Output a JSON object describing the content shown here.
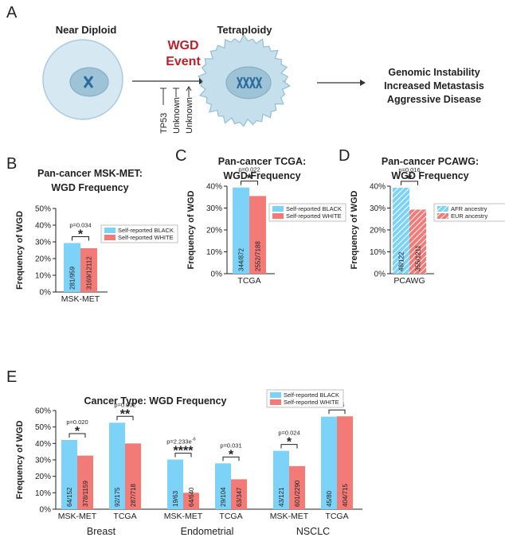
{
  "diagram": {
    "label": "A",
    "left_cell": "Near Diploid",
    "event": [
      "WGD",
      "Event"
    ],
    "regulators": [
      "TP53",
      "Unknown",
      "Unknown"
    ],
    "right_cell": "Tetraploidy",
    "outcomes": [
      "Genomic Instability",
      "Increased Metastasis",
      "Aggressive Disease"
    ]
  },
  "chart_data": [
    {
      "type": "bar",
      "label": "B",
      "title": [
        "Pan-cancer MSK-MET:",
        "WGD Frequency"
      ],
      "ylabel": "Frequency of WGD",
      "categories": [
        "MSK-MET"
      ],
      "series": [
        {
          "name": "Self-reported BLACK",
          "color": "#7dd3f7",
          "values": [
            29.3
          ],
          "counts": [
            "281/959"
          ]
        },
        {
          "name": "Self-reported WHITE",
          "color": "#f27b78",
          "values": [
            26.2
          ],
          "counts": [
            "3169/12112"
          ]
        }
      ],
      "ylim": [
        0,
        50
      ],
      "yticks": [
        {
          "value": 0,
          "label": "0%"
        },
        {
          "value": 10,
          "label": "10%"
        },
        {
          "value": 20,
          "label": "20%"
        },
        {
          "value": 30,
          "label": "30%"
        },
        {
          "value": 40,
          "label": "40%"
        },
        {
          "value": 50,
          "label": "50%"
        }
      ],
      "annotations": [
        {
          "p": "p=0.034",
          "stars": "*"
        }
      ],
      "legend": "upper right"
    },
    {
      "type": "bar",
      "label": "C",
      "title": [
        "Pan-cancer TCGA:",
        "WGD Frequency"
      ],
      "ylabel": "Frequency of WGD",
      "categories": [
        "TCGA"
      ],
      "series": [
        {
          "name": "Self-reported BLACK",
          "color": "#7dd3f7",
          "values": [
            39.4
          ],
          "counts": [
            "344/872"
          ]
        },
        {
          "name": "Self-reported WHITE",
          "color": "#f27b78",
          "values": [
            35.5
          ],
          "counts": [
            "2552/7188"
          ]
        }
      ],
      "ylim": [
        0,
        40
      ],
      "yticks": [
        {
          "value": 0,
          "label": "0%"
        },
        {
          "value": 10,
          "label": "10%"
        },
        {
          "value": 20,
          "label": "20%"
        },
        {
          "value": 30,
          "label": "30%"
        },
        {
          "value": 40,
          "label": "40%"
        }
      ],
      "annotations": [
        {
          "p": "p=0.022",
          "stars": "*"
        }
      ],
      "legend": "upper right"
    },
    {
      "type": "bar",
      "label": "D",
      "title": [
        "Pan-cancer PCAWG:",
        "WGD Frequency"
      ],
      "ylabel": "Frequency of WGD",
      "categories": [
        "PCAWG"
      ],
      "series": [
        {
          "name": "AFR ancestry",
          "color": "#7dd3f7",
          "hatch": true,
          "values": [
            39.3
          ],
          "counts": [
            "48/122"
          ]
        },
        {
          "name": "EUR ancestry",
          "color": "#f27b78",
          "hatch": true,
          "values": [
            29.3
          ],
          "counts": [
            "355/1211"
          ]
        }
      ],
      "ylim": [
        0,
        40
      ],
      "yticks": [
        {
          "value": 0,
          "label": "0%"
        },
        {
          "value": 10,
          "label": "10%"
        },
        {
          "value": 20,
          "label": "20%"
        },
        {
          "value": 30,
          "label": "30%"
        },
        {
          "value": 40,
          "label": "40%"
        }
      ],
      "annotations": [
        {
          "p": "p=0.016",
          "stars": "*"
        }
      ],
      "legend": "upper right"
    },
    {
      "type": "bar",
      "label": "E",
      "title": [
        "Cancer Type: WGD Frequency"
      ],
      "ylabel": "Frequency of WGD",
      "categories": [
        "MSK-MET",
        "TCGA",
        "MSK-MET",
        "TCGA",
        "MSK-MET",
        "TCGA"
      ],
      "groups": [
        "Breast",
        "Endometrial",
        "NSCLC"
      ],
      "series": [
        {
          "name": "Self-reported BLACK",
          "color": "#7dd3f7",
          "values": [
            42.1,
            52.6,
            30.2,
            27.9,
            35.5,
            56.3
          ],
          "counts": [
            "64/152",
            "92/175",
            "19/63",
            "29/104",
            "43/121",
            "45/80"
          ]
        },
        {
          "name": "Self-reported WHITE",
          "color": "#f27b78",
          "values": [
            32.6,
            40.0,
            10.0,
            18.2,
            26.2,
            56.5
          ],
          "counts": [
            "378/1159",
            "287/718",
            "64/640",
            "63/347",
            "601/2290",
            "404/715"
          ]
        }
      ],
      "ylim": [
        0,
        60
      ],
      "yticks": [
        {
          "value": 0,
          "label": "0%"
        },
        {
          "value": 10,
          "label": "10%"
        },
        {
          "value": 20,
          "label": "20%"
        },
        {
          "value": 30,
          "label": "30%"
        },
        {
          "value": 40,
          "label": "40%"
        },
        {
          "value": 50,
          "label": "50%"
        },
        {
          "value": 60,
          "label": "60%"
        }
      ],
      "annotations": [
        {
          "p": "p=0.020",
          "stars": "*"
        },
        {
          "p": "p=0.002",
          "stars": "**"
        },
        {
          "p": "p=2.233e",
          "p_exp": "-6",
          "stars": "****"
        },
        {
          "p": "p=0.031",
          "stars": "*"
        },
        {
          "p": "p=0.024",
          "stars": "*"
        },
        {
          "p": "p=NS"
        }
      ],
      "legend": "upper right"
    }
  ]
}
